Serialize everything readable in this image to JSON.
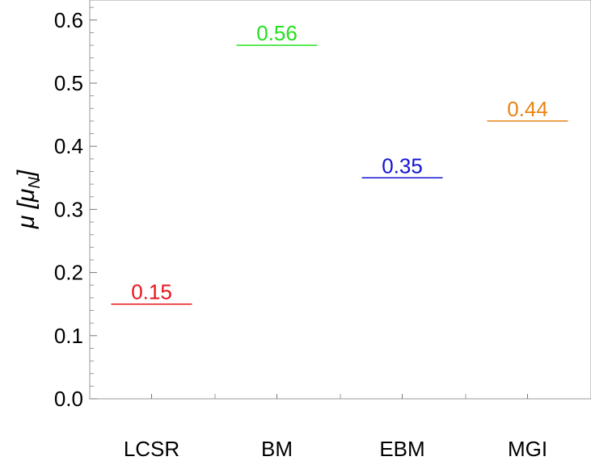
{
  "chart_data": {
    "type": "bar",
    "categories": [
      "LCSR",
      "BM",
      "EBM",
      "MGI"
    ],
    "values": [
      0.15,
      0.56,
      0.35,
      0.44
    ],
    "value_labels": [
      "0.15",
      "0.56",
      "0.35",
      "0.44"
    ],
    "colors": [
      "#e8141d",
      "#22e01e",
      "#1414d2",
      "#e88414"
    ],
    "ylabel": "μ [μN]",
    "ylabel_main": "μ [μ",
    "ylabel_sub": "N",
    "ylabel_close": "]",
    "ylim": [
      0,
      0.63
    ],
    "yticks": [
      0.0,
      0.1,
      0.2,
      0.3,
      0.4,
      0.5,
      0.6
    ],
    "ytick_labels": [
      "0.0",
      "0.1",
      "0.2",
      "0.3",
      "0.4",
      "0.5",
      "0.6"
    ],
    "grid": false
  }
}
